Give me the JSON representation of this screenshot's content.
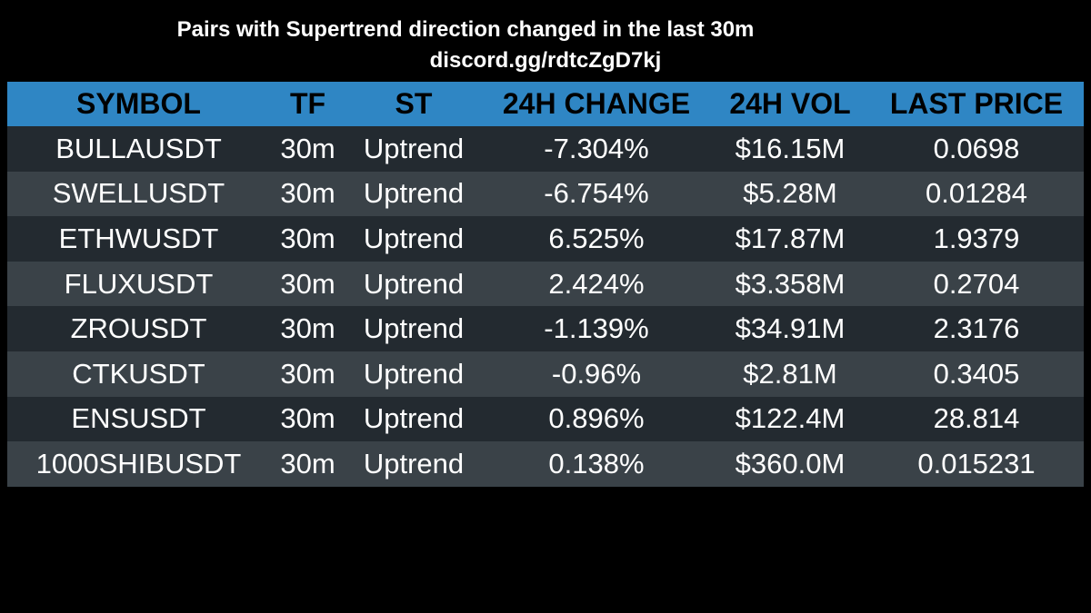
{
  "header": {
    "title": "Pairs with Supertrend direction changed in the last 30m",
    "subtitle": "discord.gg/rdtcZgD7kj"
  },
  "table": {
    "columns": [
      "SYMBOL",
      "TF",
      "ST",
      "24H CHANGE",
      "24H VOL",
      "LAST PRICE"
    ],
    "rows": [
      [
        "BULLAUSDT",
        "30m",
        "Uptrend",
        "-7.304%",
        "$16.15M",
        "0.0698"
      ],
      [
        "SWELLUSDT",
        "30m",
        "Uptrend",
        "-6.754%",
        "$5.28M",
        "0.01284"
      ],
      [
        "ETHWUSDT",
        "30m",
        "Uptrend",
        "6.525%",
        "$17.87M",
        "1.9379"
      ],
      [
        "FLUXUSDT",
        "30m",
        "Uptrend",
        "2.424%",
        "$3.358M",
        "0.2704"
      ],
      [
        "ZROUSDT",
        "30m",
        "Uptrend",
        "-1.139%",
        "$34.91M",
        "2.3176"
      ],
      [
        "CTKUSDT",
        "30m",
        "Uptrend",
        "-0.96%",
        "$2.81M",
        "0.3405"
      ],
      [
        "ENSUSDT",
        "30m",
        "Uptrend",
        "0.896%",
        "$122.4M",
        "28.814"
      ],
      [
        "1000SHIBUSDT",
        "30m",
        "Uptrend",
        "0.138%",
        "$360.0M",
        "0.015231"
      ]
    ]
  }
}
